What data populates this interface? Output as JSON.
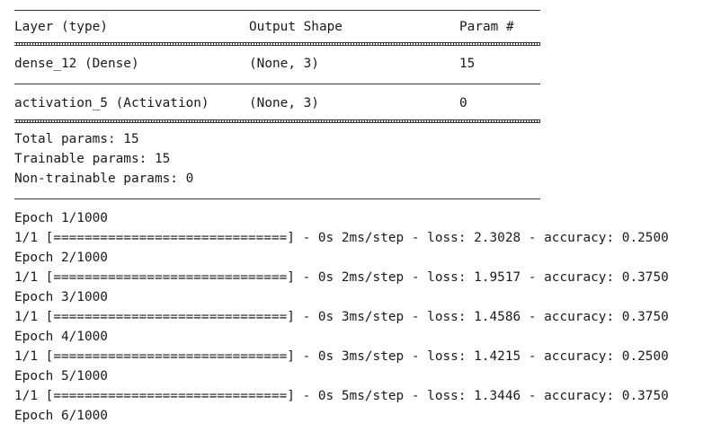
{
  "summary": {
    "headers": {
      "layer": "Layer (type)",
      "shape": "Output Shape",
      "params": "Param #"
    },
    "rows": [
      {
        "layer": "dense_12 (Dense)",
        "shape": "(None, 3)",
        "params": "15"
      },
      {
        "layer": "activation_5 (Activation)",
        "shape": "(None, 3)",
        "params": "0"
      }
    ],
    "totals": {
      "total": "Total params: 15",
      "trainable": "Trainable params: 15",
      "non_trainable": "Non-trainable params: 0"
    }
  },
  "training": {
    "epochs": [
      {
        "header": "Epoch 1/1000",
        "progress": "1/1 [==============================] - 0s 2ms/step - loss: 2.3028 - accuracy: 0.2500"
      },
      {
        "header": "Epoch 2/1000",
        "progress": "1/1 [==============================] - 0s 2ms/step - loss: 1.9517 - accuracy: 0.3750"
      },
      {
        "header": "Epoch 3/1000",
        "progress": "1/1 [==============================] - 0s 3ms/step - loss: 1.4586 - accuracy: 0.3750"
      },
      {
        "header": "Epoch 4/1000",
        "progress": "1/1 [==============================] - 0s 3ms/step - loss: 1.4215 - accuracy: 0.2500"
      },
      {
        "header": "Epoch 5/1000",
        "progress": "1/1 [==============================] - 0s 5ms/step - loss: 1.3446 - accuracy: 0.3750"
      }
    ],
    "last_header": "Epoch 6/1000"
  }
}
